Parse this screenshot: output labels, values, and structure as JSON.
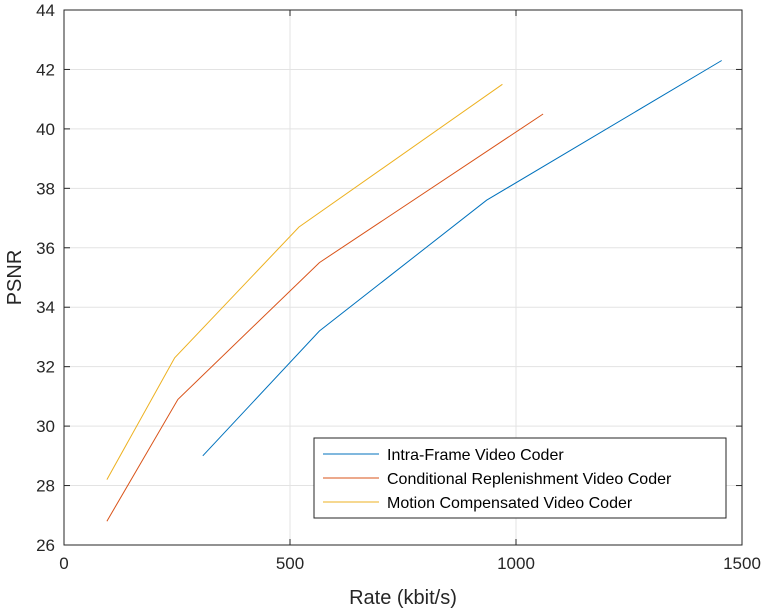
{
  "chart_data": {
    "type": "line",
    "title": "",
    "xlabel": "Rate (kbit/s)",
    "ylabel": "PSNR",
    "xlim": [
      0,
      1500
    ],
    "ylim": [
      26,
      44
    ],
    "xticks": [
      0,
      500,
      1000,
      1500
    ],
    "yticks": [
      26,
      28,
      30,
      32,
      34,
      36,
      38,
      40,
      42,
      44
    ],
    "grid": true,
    "legend_position": "bottom-right",
    "series": [
      {
        "name": "Intra-Frame Video Coder",
        "color": "#0072BD",
        "x": [
          307,
          565,
          935,
          1455
        ],
        "y": [
          29.0,
          33.2,
          37.6,
          42.3
        ]
      },
      {
        "name": "Conditional Replenishment Video Coder",
        "color": "#D95319",
        "x": [
          95,
          252,
          565,
          1060
        ],
        "y": [
          26.8,
          30.9,
          35.5,
          40.5
        ]
      },
      {
        "name": "Motion Compensated Video Coder",
        "color": "#EDB120",
        "x": [
          95,
          245,
          520,
          970
        ],
        "y": [
          28.2,
          32.3,
          36.7,
          41.5
        ]
      }
    ]
  }
}
